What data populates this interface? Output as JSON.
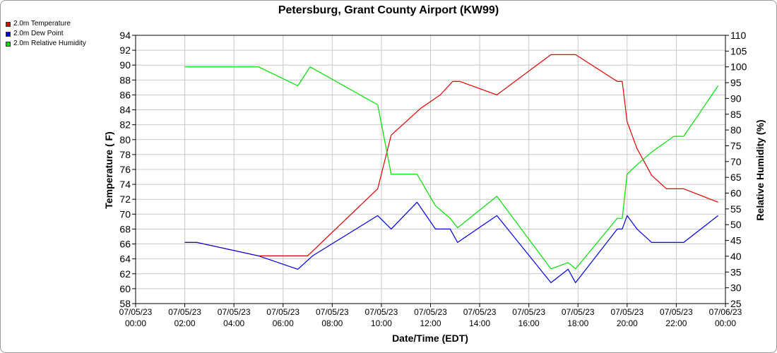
{
  "chart_data": {
    "type": "line",
    "title": "Petersburg, Grant County Airport (KW99)",
    "xlabel": "Date/Time (EDT)",
    "ylabel_left": "Temperature ( F)",
    "ylabel_right": "Relative Humidity (%)",
    "xlim": [
      "07/05/23 00:00",
      "07/06/23 00:00"
    ],
    "ylim_left": [
      58,
      94
    ],
    "ylim_right": [
      25,
      110
    ],
    "y_ticks_left": [
      58,
      60,
      62,
      64,
      66,
      68,
      70,
      72,
      74,
      76,
      78,
      80,
      82,
      84,
      86,
      88,
      90,
      92,
      94
    ],
    "y_ticks_right": [
      25,
      30,
      35,
      40,
      45,
      50,
      55,
      60,
      65,
      70,
      75,
      80,
      85,
      90,
      95,
      100,
      105,
      110
    ],
    "x_ticks": [
      {
        "hour": 0,
        "date": "07/05/23",
        "time": "00:00"
      },
      {
        "hour": 2,
        "date": "07/05/23",
        "time": "02:00"
      },
      {
        "hour": 4,
        "date": "07/05/23",
        "time": "04:00"
      },
      {
        "hour": 6,
        "date": "07/05/23",
        "time": "06:00"
      },
      {
        "hour": 8,
        "date": "07/05/23",
        "time": "08:00"
      },
      {
        "hour": 10,
        "date": "07/05/23",
        "time": "10:00"
      },
      {
        "hour": 12,
        "date": "07/05/23",
        "time": "12:00"
      },
      {
        "hour": 14,
        "date": "07/05/23",
        "time": "14:00"
      },
      {
        "hour": 16,
        "date": "07/05/23",
        "time": "16:00"
      },
      {
        "hour": 18,
        "date": "07/05/23",
        "time": "18:00"
      },
      {
        "hour": 20,
        "date": "07/05/23",
        "time": "20:00"
      },
      {
        "hour": 22,
        "date": "07/05/23",
        "time": "22:00"
      },
      {
        "hour": 24,
        "date": "07/06/23",
        "time": "00:00"
      }
    ],
    "grid": true,
    "legend_position": "top-left",
    "series": [
      {
        "name": "2.0m Temperature",
        "color": "#e00000",
        "axis": "left",
        "points": [
          [
            2.0,
            66.2
          ],
          [
            2.5,
            66.2
          ],
          [
            5.0,
            64.4
          ],
          [
            7.0,
            64.4
          ],
          [
            9.85,
            73.4
          ],
          [
            10.4,
            80.6
          ],
          [
            11.6,
            84.2
          ],
          [
            12.4,
            86.0
          ],
          [
            12.9,
            87.8
          ],
          [
            13.2,
            87.8
          ],
          [
            14.7,
            86.0
          ],
          [
            16.9,
            91.4
          ],
          [
            17.9,
            91.4
          ],
          [
            19.6,
            87.8
          ],
          [
            19.8,
            87.8
          ],
          [
            20.0,
            82.4
          ],
          [
            20.4,
            78.8
          ],
          [
            21.0,
            75.2
          ],
          [
            21.6,
            73.4
          ],
          [
            22.3,
            73.4
          ],
          [
            23.7,
            71.6
          ]
        ]
      },
      {
        "name": "2.0m Dew Point",
        "color": "#0000e0",
        "axis": "left",
        "points": [
          [
            2.0,
            66.2
          ],
          [
            2.5,
            66.2
          ],
          [
            5.0,
            64.4
          ],
          [
            6.6,
            62.6
          ],
          [
            7.2,
            64.4
          ],
          [
            9.85,
            69.8
          ],
          [
            10.4,
            68.0
          ],
          [
            11.45,
            71.6
          ],
          [
            12.2,
            68.0
          ],
          [
            12.8,
            68.0
          ],
          [
            13.1,
            66.2
          ],
          [
            14.7,
            69.8
          ],
          [
            16.9,
            60.8
          ],
          [
            17.6,
            62.6
          ],
          [
            17.9,
            60.8
          ],
          [
            19.6,
            68.0
          ],
          [
            19.8,
            68.0
          ],
          [
            20.0,
            69.8
          ],
          [
            20.4,
            68.0
          ],
          [
            21.0,
            66.2
          ],
          [
            22.3,
            66.2
          ],
          [
            23.7,
            69.8
          ]
        ]
      },
      {
        "name": "2.0m Relative Humidity",
        "color": "#00e000",
        "axis": "right",
        "points": [
          [
            2.0,
            100
          ],
          [
            5.0,
            100
          ],
          [
            6.6,
            94
          ],
          [
            7.1,
            100
          ],
          [
            9.85,
            88
          ],
          [
            10.4,
            66
          ],
          [
            11.45,
            66
          ],
          [
            12.2,
            56
          ],
          [
            12.8,
            52
          ],
          [
            13.1,
            49
          ],
          [
            14.7,
            59
          ],
          [
            16.9,
            36
          ],
          [
            17.6,
            38
          ],
          [
            17.9,
            36
          ],
          [
            19.6,
            52
          ],
          [
            19.8,
            52
          ],
          [
            20.0,
            66
          ],
          [
            20.4,
            69
          ],
          [
            21.0,
            73
          ],
          [
            21.9,
            78
          ],
          [
            22.3,
            78
          ],
          [
            23.7,
            94
          ]
        ]
      }
    ]
  }
}
